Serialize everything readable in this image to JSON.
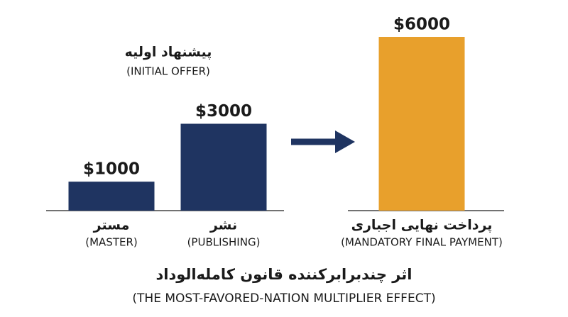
{
  "chart_data": {
    "type": "bar",
    "title": "اثر چندبرابرکننده قانون کامله‌الوداد",
    "subtitle": "(THE MOST-FAVORED-NATION MULTIPLIER EFFECT)",
    "group_label": "پیشنهاد اولیه",
    "group_label_en": "(INITIAL OFFER)",
    "categories": [
      "مستر",
      "نشر",
      "پرداخت نهایی اجباری"
    ],
    "categories_en": [
      "(MASTER)",
      "(PUBLISHING)",
      "(MANDATORY FINAL PAYMENT)"
    ],
    "values": [
      1000,
      3000,
      6000
    ],
    "value_labels": [
      "$1000",
      "$3000",
      "$6000"
    ],
    "colors": [
      "#1f3461",
      "#1f3461",
      "#e8a02c"
    ]
  }
}
